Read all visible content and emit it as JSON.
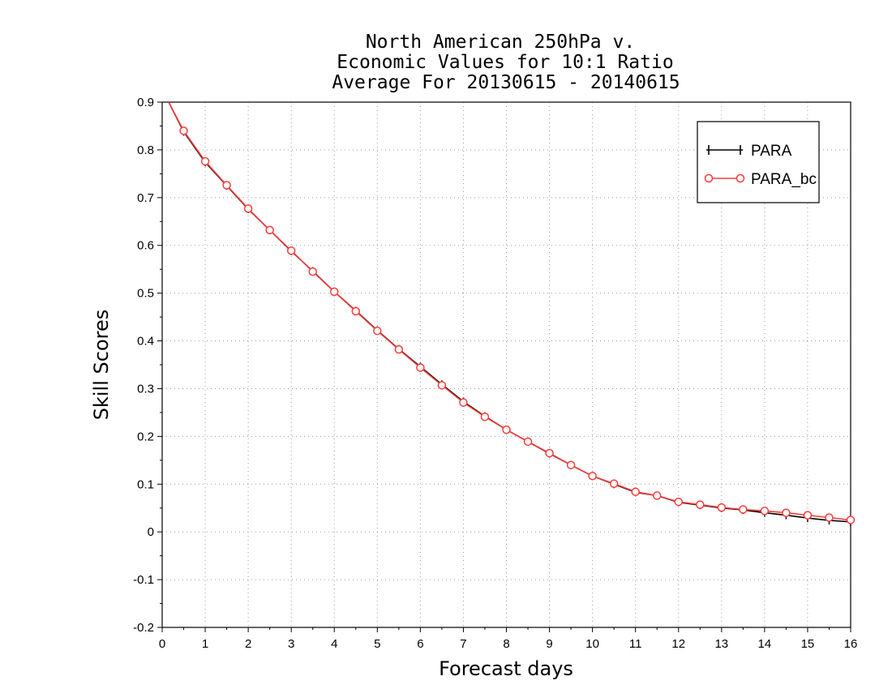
{
  "chart_data": {
    "type": "line",
    "title": [
      "North American 250hPa v.",
      "Economic Values for 10:1 Ratio",
      "Average For 20130615 - 20140615"
    ],
    "xlabel": "Forecast days",
    "ylabel": "Skill Scores",
    "xlim": [
      0,
      16
    ],
    "ylim": [
      -0.2,
      0.9
    ],
    "x_ticks": [
      "0",
      "1",
      "2",
      "3",
      "4",
      "5",
      "6",
      "7",
      "8",
      "9",
      "10",
      "11",
      "12",
      "13",
      "14",
      "15",
      "16"
    ],
    "y_ticks": [
      "0.9",
      "0.8",
      "0.7",
      "0.6",
      "0.5",
      "0.4",
      "0.3",
      "0.2",
      "0.1",
      "0",
      "-0.1",
      "-0.2"
    ],
    "grid": true,
    "legend_position": "top-right",
    "x": [
      0.5,
      1,
      1.5,
      2,
      2.5,
      3,
      3.5,
      4,
      4.5,
      5,
      5.5,
      6,
      6.5,
      7,
      7.5,
      8,
      8.5,
      9,
      9.5,
      10,
      10.5,
      11,
      11.5,
      12,
      12.5,
      13,
      13.5,
      14,
      14.5,
      15,
      15.5,
      16
    ],
    "series": [
      {
        "name": "PARA",
        "color": "#000000",
        "marker": "plus",
        "values": [
          0.838,
          0.774,
          0.725,
          0.676,
          0.632,
          0.588,
          0.546,
          0.503,
          0.463,
          0.422,
          0.383,
          0.346,
          0.309,
          0.273,
          0.242,
          0.214,
          0.189,
          0.164,
          0.14,
          0.117,
          0.1,
          0.083,
          0.076,
          0.062,
          0.056,
          0.05,
          0.046,
          0.04,
          0.035,
          0.029,
          0.024,
          0.021
        ]
      },
      {
        "name": "PARA_bc",
        "color": "#ff3b3b",
        "marker": "circle",
        "values": [
          0.84,
          0.776,
          0.726,
          0.677,
          0.632,
          0.589,
          0.545,
          0.503,
          0.462,
          0.421,
          0.382,
          0.344,
          0.307,
          0.271,
          0.241,
          0.214,
          0.189,
          0.165,
          0.14,
          0.117,
          0.101,
          0.084,
          0.076,
          0.063,
          0.057,
          0.051,
          0.047,
          0.044,
          0.04,
          0.035,
          0.03,
          0.025
        ]
      }
    ]
  }
}
